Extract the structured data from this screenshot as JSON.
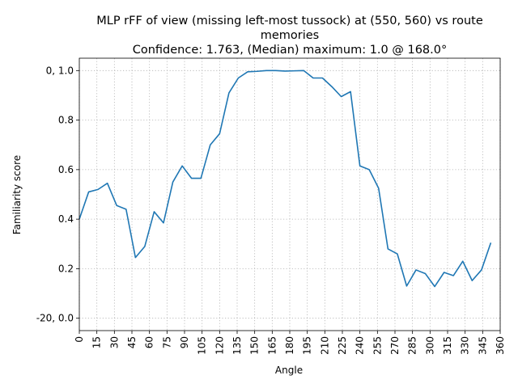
{
  "chart_data": {
    "type": "line",
    "title": {
      "line1": "MLP rFF of view (missing left-most tussock) at (550, 560) vs route",
      "line2": "memories",
      "line3": "Confidence: 1.763, (Median) maximum: 1.0 @ 168.0°"
    },
    "xlabel": "Angle",
    "ylabel": "Familiarity score",
    "xlim": [
      0,
      360
    ],
    "ylim": [
      -0.05,
      1.05
    ],
    "grid": true,
    "x_ticks": [
      0,
      15,
      30,
      45,
      60,
      75,
      90,
      105,
      120,
      135,
      150,
      165,
      180,
      195,
      210,
      225,
      240,
      255,
      270,
      285,
      300,
      315,
      330,
      345,
      360
    ],
    "x_tick_labels": [
      "0",
      "15",
      "30",
      "45",
      "60",
      "75",
      "90",
      "105",
      "120",
      "135",
      "150",
      "165",
      "180",
      "195",
      "210",
      "225",
      "240",
      "255",
      "270",
      "285",
      "300",
      "315",
      "330",
      "345",
      "360"
    ],
    "y_ticks": [
      0.0,
      0.2,
      0.4,
      0.6,
      0.8,
      1.0
    ],
    "y_tick_labels": [
      "-20, 0.0",
      "0.2",
      "0.4",
      "0.6",
      "0.8",
      "0, 1.0"
    ],
    "line_color": "#1f77b4",
    "series": [
      {
        "x": [
          0,
          8,
          16,
          24,
          32,
          40,
          48,
          56,
          64,
          72,
          80,
          88,
          96,
          104,
          112,
          120,
          128,
          136,
          144,
          152,
          160,
          168,
          176,
          184,
          192,
          200,
          208,
          216,
          224,
          232,
          240,
          248,
          256,
          264,
          272,
          280,
          288,
          296,
          304,
          312,
          320,
          328,
          336,
          344,
          352
        ],
        "y": [
          0.4,
          0.51,
          0.52,
          0.545,
          0.455,
          0.44,
          0.245,
          0.29,
          0.43,
          0.385,
          0.55,
          0.615,
          0.565,
          0.565,
          0.7,
          0.745,
          0.91,
          0.97,
          0.995,
          0.997,
          1.0,
          1.0,
          0.998,
          0.999,
          1.0,
          0.97,
          0.97,
          0.935,
          0.895,
          0.915,
          0.615,
          0.6,
          0.525,
          0.28,
          0.26,
          0.13,
          0.195,
          0.18,
          0.128,
          0.185,
          0.172,
          0.23,
          0.152,
          0.195,
          0.305
        ]
      }
    ]
  }
}
